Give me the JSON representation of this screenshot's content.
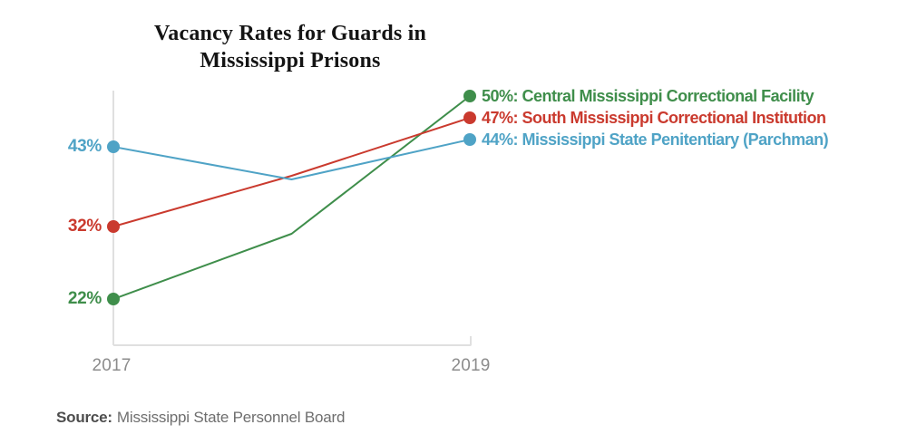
{
  "chart_data": {
    "type": "line",
    "title": "Vacancy Rates for Guards in Mississippi Prisons",
    "title_lines": [
      "Vacancy Rates for Guards in",
      "Mississippi Prisons"
    ],
    "x": [
      2017,
      2018,
      2019
    ],
    "x_tick_labels": [
      "2017",
      "2019"
    ],
    "xlabel": "",
    "ylabel": "",
    "ylim": [
      20,
      52
    ],
    "grid": false,
    "legend_position": "right-of-line-ends",
    "axis_color": "#E0E0E0",
    "tick_label_color": "#8C8C8C",
    "series": [
      {
        "name": "Central Mississippi Correctional Facility",
        "color": "#3F8E4B",
        "values": [
          22,
          31,
          50
        ],
        "start_label": "22%",
        "end_label": "50%: Central Mississippi Correctional Facility"
      },
      {
        "name": "South Mississippi Correctional Institution",
        "color": "#CA3A2E",
        "values": [
          32,
          39,
          47
        ],
        "start_label": "32%",
        "end_label": "47%: South Mississippi Correctional Institution"
      },
      {
        "name": "Mississippi State Penitentiary (Parchman)",
        "color": "#4FA3C6",
        "values": [
          43,
          38.5,
          44
        ],
        "start_label": "43%",
        "end_label": "44%: Mississippi State Penitentiary (Parchman)"
      }
    ]
  },
  "source": {
    "label": "Source:",
    "text": "Mississippi State Personnel Board"
  }
}
